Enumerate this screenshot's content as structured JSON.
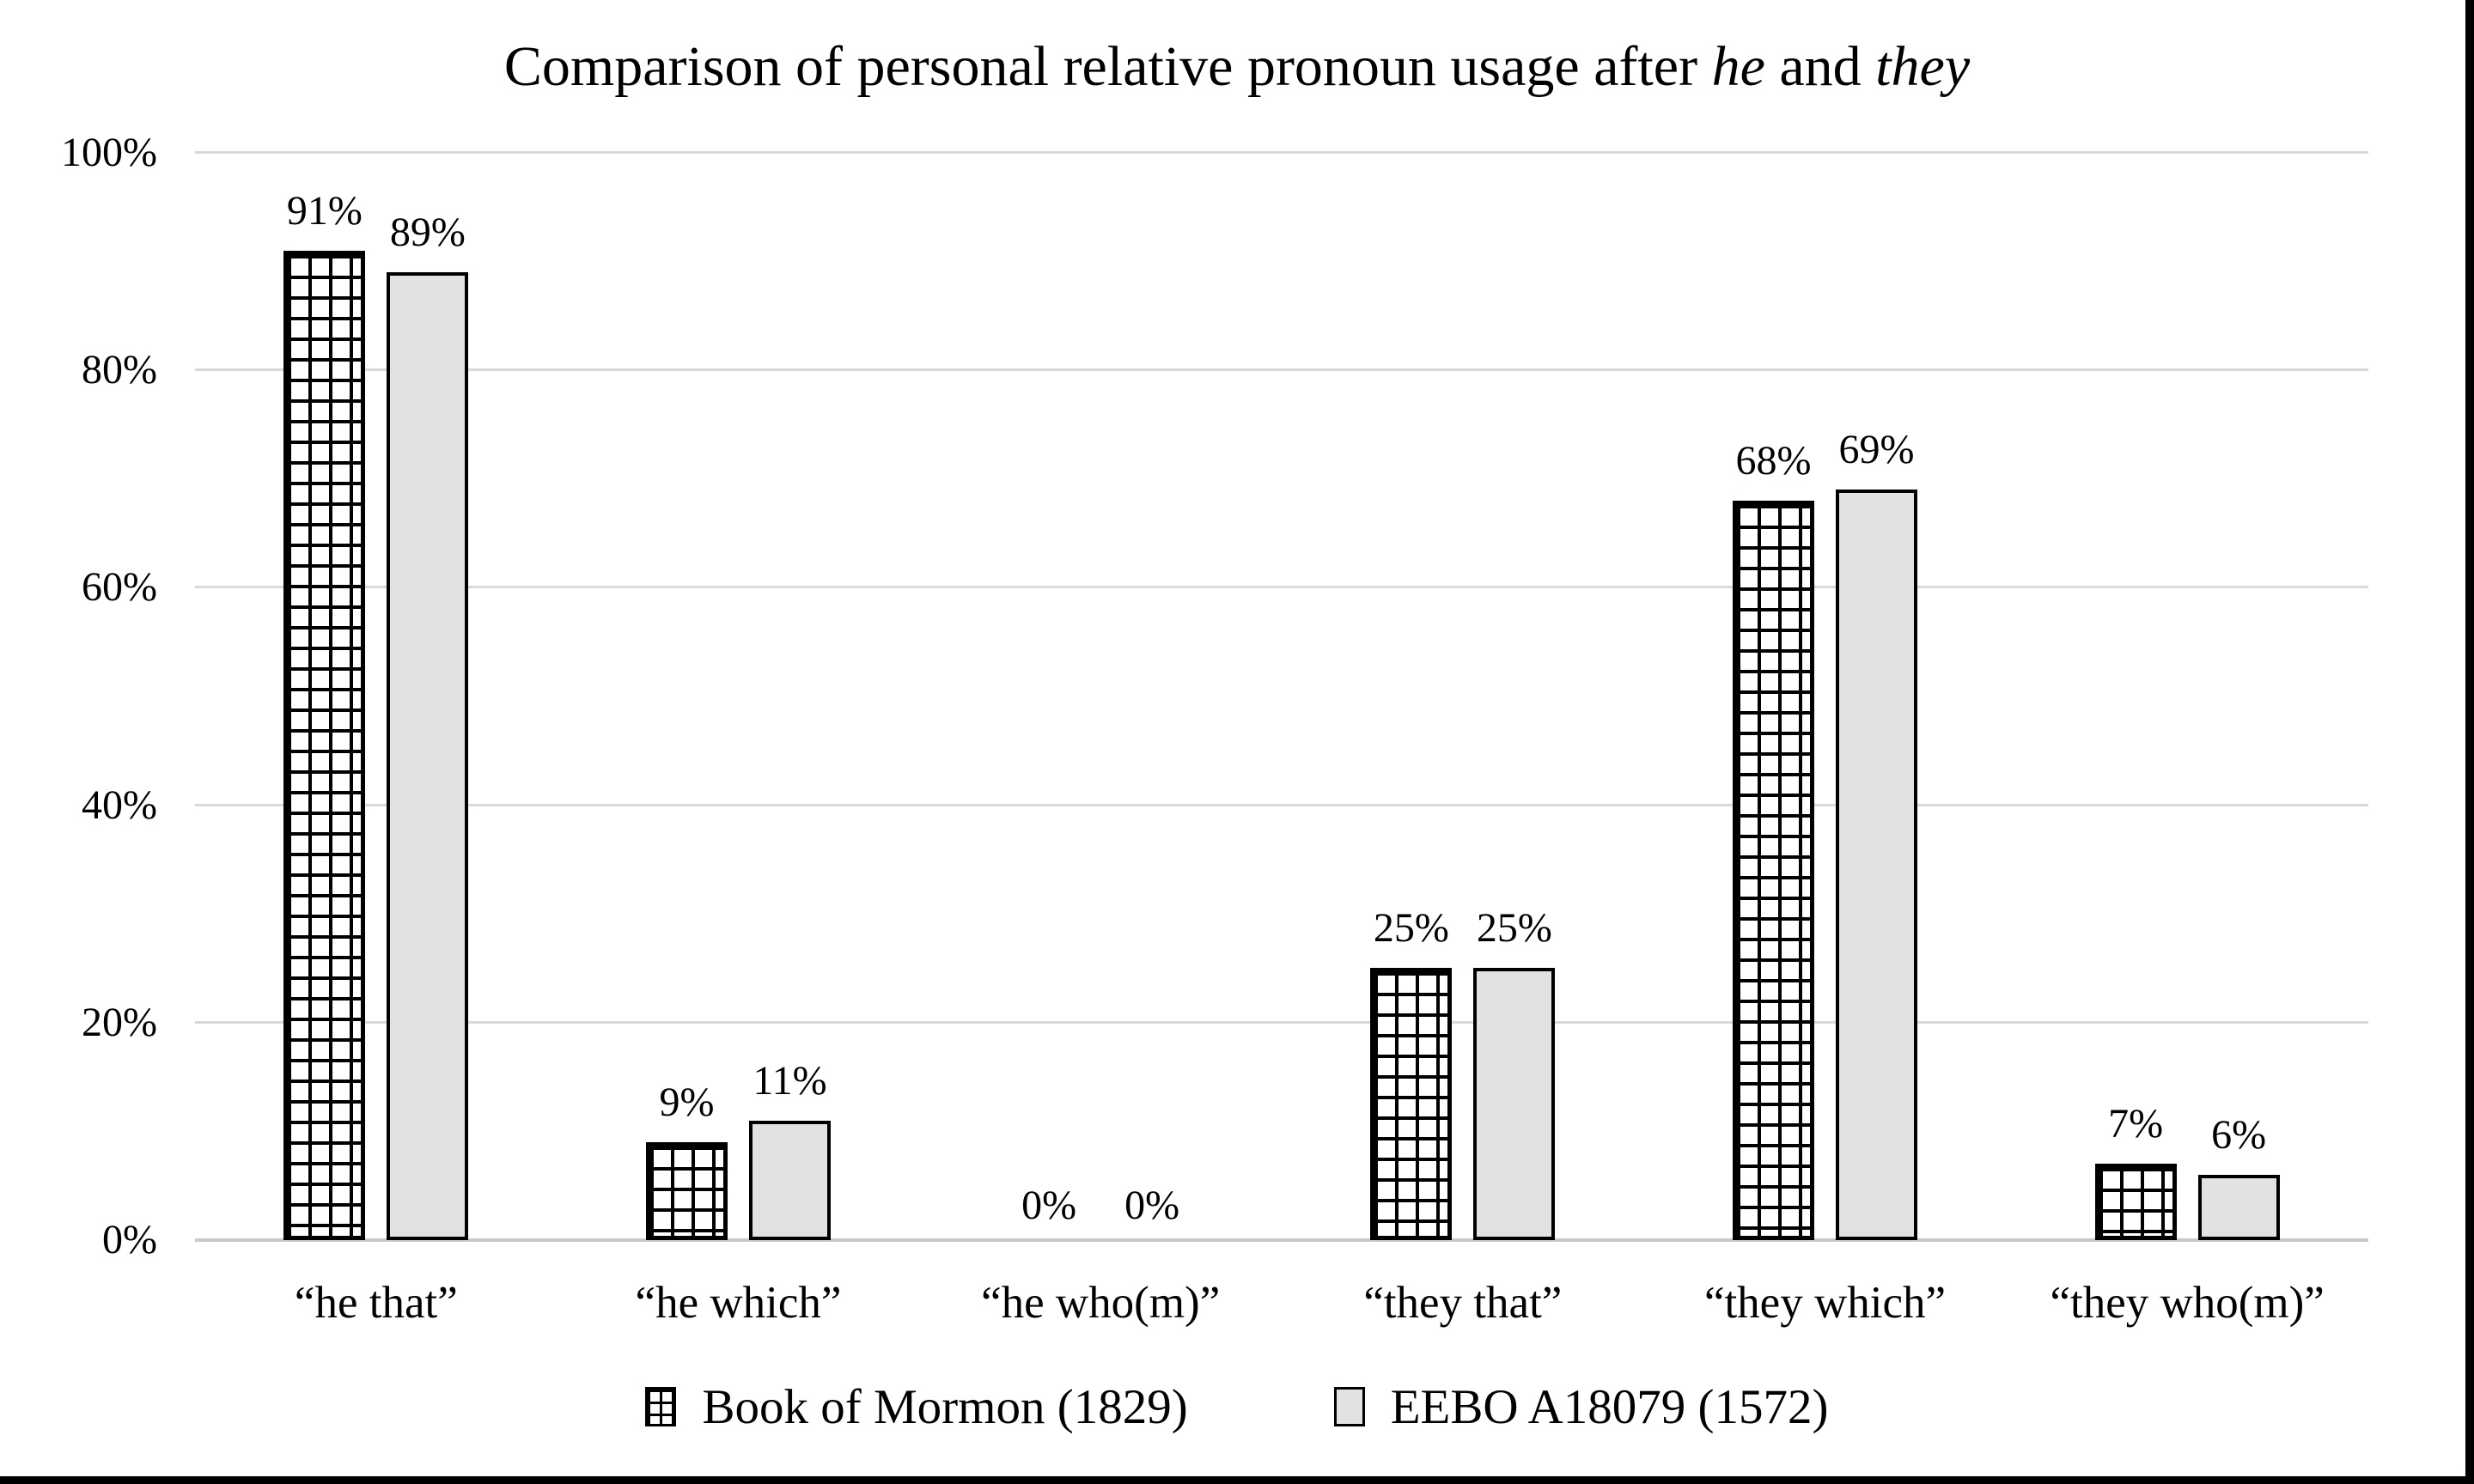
{
  "chart_data": {
    "type": "bar",
    "title": "Comparison of personal relative pronoun usage after he and they",
    "title_rich": [
      {
        "text": "Comparison of personal relative pronoun usage after ",
        "italic": false
      },
      {
        "text": "he",
        "italic": true
      },
      {
        "text": " and ",
        "italic": false
      },
      {
        "text": "they",
        "italic": true
      }
    ],
    "categories": [
      "“he that”",
      "“he which”",
      "“he who(m)”",
      "“they that”",
      "“they which”",
      "“they who(m)”"
    ],
    "series": [
      {
        "name": "Book of Mormon (1829)",
        "pattern": "crosshatch",
        "values": [
          91,
          9,
          0,
          25,
          68,
          7
        ],
        "labels": [
          "91%",
          "9%",
          "0%",
          "25%",
          "68%",
          "7%"
        ]
      },
      {
        "name": "EEBO A18079 (1572)",
        "pattern": "solid-gray",
        "values": [
          89,
          11,
          0,
          25,
          69,
          6
        ],
        "labels": [
          "89%",
          "11%",
          "0%",
          "25%",
          "69%",
          "6%"
        ]
      }
    ],
    "yticks": [
      {
        "value": 0,
        "label": "0%"
      },
      {
        "value": 20,
        "label": "20%"
      },
      {
        "value": 40,
        "label": "40%"
      },
      {
        "value": 60,
        "label": "60%"
      },
      {
        "value": 80,
        "label": "80%"
      },
      {
        "value": 100,
        "label": "100%"
      }
    ],
    "ylim": [
      0,
      100
    ],
    "xlabel": "",
    "ylabel": "",
    "grid": true,
    "legend_position": "bottom",
    "colors": {
      "bar_fill_gray": "#e2e2e2",
      "bar_border": "#000000",
      "hatch": "#000000",
      "gridline": "#d9d9d9",
      "axis_line": "#c9c9c9",
      "background": "#ffffff",
      "frame_edge": "#000000"
    }
  }
}
